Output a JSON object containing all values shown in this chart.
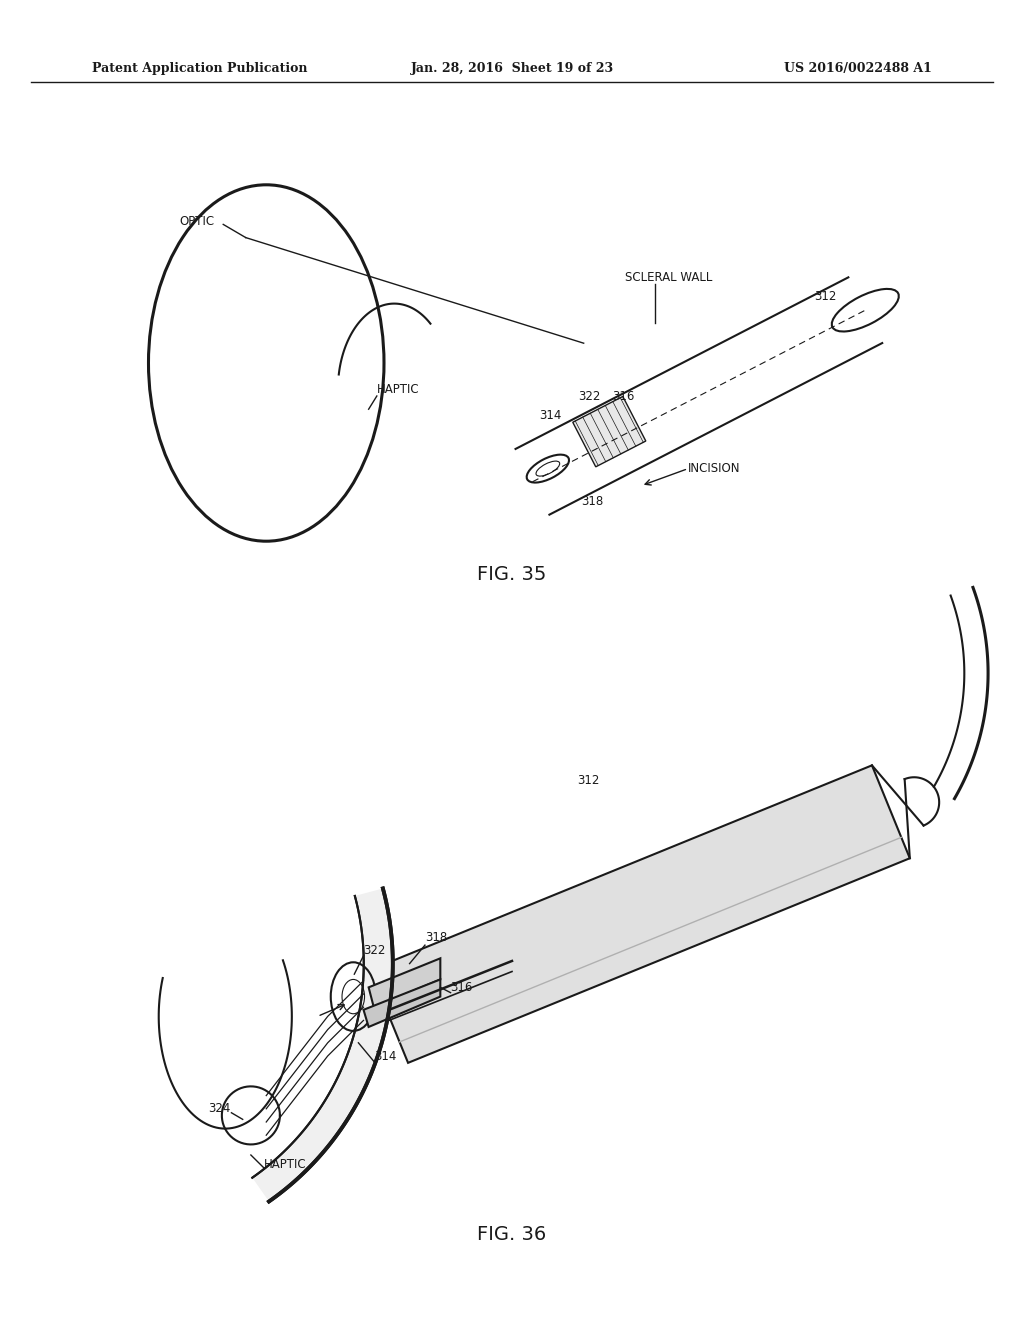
{
  "background_color": "#ffffff",
  "header_left": "Patent Application Publication",
  "header_center": "Jan. 28, 2016  Sheet 19 of 23",
  "header_right": "US 2016/0022488 A1",
  "fig35_caption": "FIG. 35",
  "fig36_caption": "FIG. 36",
  "line_color": "#1a1a1a"
}
